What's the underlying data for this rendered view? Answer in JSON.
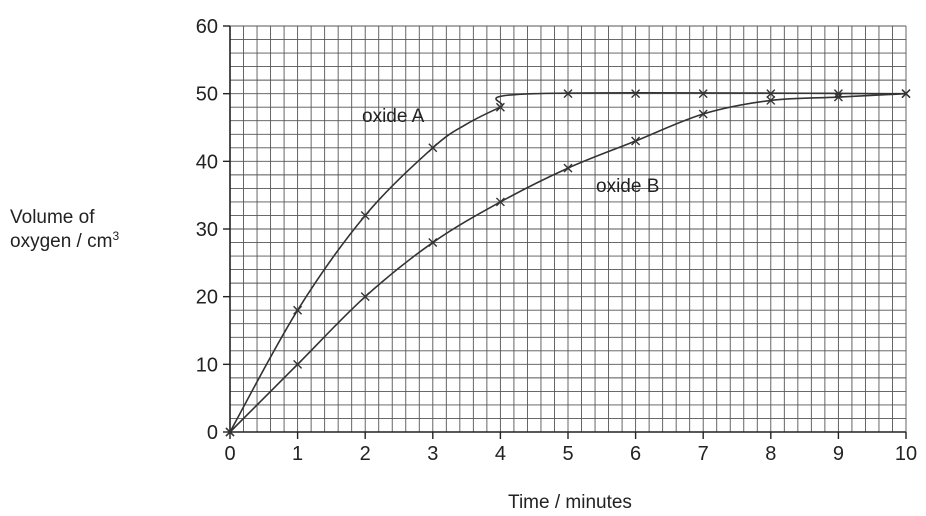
{
  "chart_data": {
    "type": "line",
    "ylabel_line1": "Volume of",
    "ylabel_line2": "oxygen / cm",
    "ylabel_sup": "3",
    "xlabel": "Time / minutes",
    "xlim": [
      0,
      10
    ],
    "ylim": [
      0,
      60
    ],
    "x_ticks": [
      0,
      1,
      2,
      3,
      4,
      5,
      6,
      7,
      8,
      9,
      10
    ],
    "y_ticks": [
      0,
      10,
      20,
      30,
      40,
      50,
      60
    ],
    "grid": true,
    "minor_grid_divisions_per_unit": 5,
    "series": [
      {
        "name": "oxide A",
        "x": [
          0,
          1,
          2,
          3,
          4,
          5,
          6,
          7,
          8,
          9,
          10
        ],
        "y": [
          0,
          18,
          32,
          42,
          48,
          50,
          50,
          50,
          50,
          50,
          50
        ],
        "curve": [
          [
            0,
            0
          ],
          [
            1,
            18
          ],
          [
            2,
            32
          ],
          [
            3,
            42
          ],
          [
            3.5,
            45.5
          ],
          [
            4,
            48
          ],
          [
            4.5,
            50
          ],
          [
            10,
            50
          ]
        ]
      },
      {
        "name": "oxide B",
        "x": [
          0,
          1,
          2,
          3,
          4,
          5,
          6,
          7,
          8,
          9,
          10
        ],
        "y": [
          0,
          10,
          20,
          28,
          34,
          39,
          43,
          47,
          49,
          49.5,
          50
        ]
      }
    ],
    "colors": {
      "grid": "#555555",
      "axis": "#222222",
      "line": "#333333"
    },
    "marker": "x"
  }
}
